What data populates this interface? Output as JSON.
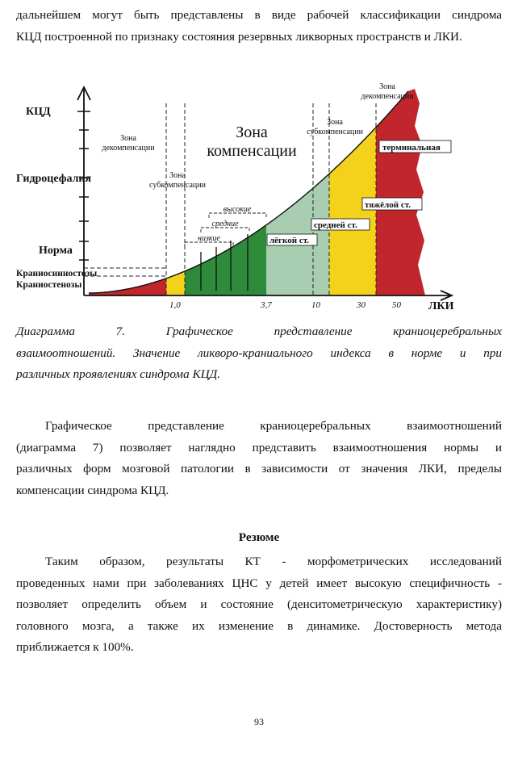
{
  "top_paragraph": {
    "lines": [
      "дальнейшем могут быть представлены в виде рабочей классификации синдрома",
      "КЦД построенной по признаку состояния резервных ликворных пространств и ЛКИ."
    ]
  },
  "caption": {
    "lines": [
      "Диаграмма 7. Графическое представление краниоцеребральных",
      "взаимоотношений. Значение ликворо-краниального индекса в норме и при",
      "различных проявлениях синдрома КЦД."
    ]
  },
  "body_paragraph": {
    "lines": [
      "Графическое представление краниоцеребральных взаимоотношений",
      "(диаграмма 7) позволяет наглядно представить взаимоотношения нормы и",
      "различных форм мозговой патологии в зависимости от значения ЛКИ, пределы",
      "компенсации синдрома КЦД."
    ]
  },
  "resume": {
    "heading": "Резюме",
    "lines": [
      "Таким образом, результаты КТ - морфометрических исследований",
      "проведенных нами при заболеваниях ЦНС у детей имеет высокую специфичность -",
      "позволяет определить объем и состояние (денситометрическую характеристику)",
      "головного мозга, а также их изменение в динамике. Достоверность метода",
      "приближается к 100%."
    ]
  },
  "page_number": "93",
  "chart_data": {
    "type": "area",
    "x_label": "ЛКИ",
    "y_label": "КЦД",
    "x_ticks": [
      "1,0",
      "3,7",
      "10",
      "30",
      "50"
    ],
    "y_levels": [
      "Гидроцефалия",
      "Норма",
      "Краниосинностозы",
      "Краниостенозы"
    ],
    "zones": [
      {
        "label": "Зона декомпенсации",
        "x_range": [
          "",
          "1,0"
        ]
      },
      {
        "label": "Зона субкомпенсации",
        "x_range": [
          "1,0",
          "3,7"
        ]
      },
      {
        "label": "Зона компенсации",
        "x_range": [
          "3,7",
          "10"
        ]
      },
      {
        "label": "Зона субкомпенсации",
        "x_range": [
          "10",
          "30"
        ]
      },
      {
        "label": "Зона декомпенсации",
        "x_range": [
          "30",
          "50"
        ]
      }
    ],
    "bands": [
      {
        "label": "",
        "color": "#c0262c"
      },
      {
        "label": "",
        "color": "#f4d21c"
      },
      {
        "label": "низкие",
        "color": "#2e8b3a"
      },
      {
        "label": "средние",
        "color": "#2e8b3a"
      },
      {
        "label": "высокие",
        "color": "#2e8b3a"
      },
      {
        "label": "лёгкой ст.",
        "color": "#a8cdb0"
      },
      {
        "label": "средней ст.",
        "color": "#f4d21c"
      },
      {
        "label": "тяжёлой ст.",
        "color": "#f4d21c"
      },
      {
        "label": "терминальная",
        "color": "#c0262c"
      }
    ],
    "labels": {
      "zone_decomp_left": [
        "Зона",
        "декомпенсации"
      ],
      "zone_subcomp_left": [
        "Зона",
        "субкомпенсации"
      ],
      "zone_comp": [
        "Зона",
        "компенсации"
      ],
      "zone_subcomp_right": [
        "Зона",
        "субкомпенсации"
      ],
      "zone_decomp_right": [
        "Зона",
        "декомпенсации"
      ],
      "vysokie": "высокие",
      "srednie": "средние",
      "nizkie": "низкие",
      "legkoy": "лёгкой ст.",
      "sredney": "средней ст.",
      "tyazheloy": "тяжёлой ст.",
      "terminalnaya": "терминальная"
    }
  }
}
